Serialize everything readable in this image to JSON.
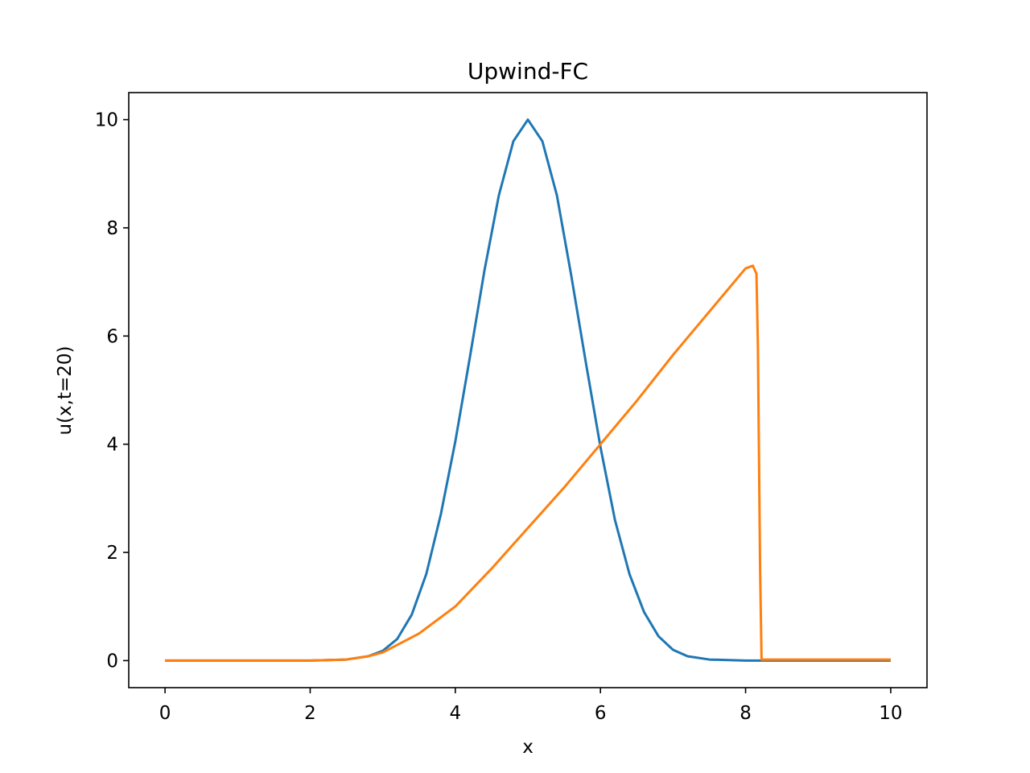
{
  "chart_data": {
    "type": "line",
    "title": "Upwind-FC",
    "xlabel": "x",
    "ylabel": "u(x,t=20)",
    "xlim": [
      -0.5,
      10.5
    ],
    "ylim": [
      -0.5,
      10.5
    ],
    "xticks": [
      0,
      2,
      4,
      6,
      8,
      10
    ],
    "yticks": [
      0,
      2,
      4,
      6,
      8,
      10
    ],
    "xtick_labels": [
      "0",
      "2",
      "4",
      "6",
      "8",
      "10"
    ],
    "ytick_labels": [
      "0",
      "2",
      "4",
      "6",
      "8",
      "10"
    ],
    "grid": false,
    "legend": "none",
    "series": [
      {
        "color": "#1f77b4",
        "x": [
          0,
          1,
          2,
          2.5,
          2.8,
          3.0,
          3.2,
          3.4,
          3.6,
          3.8,
          4.0,
          4.2,
          4.4,
          4.6,
          4.8,
          5.0,
          5.2,
          5.4,
          5.6,
          5.8,
          6.0,
          6.2,
          6.4,
          6.6,
          6.8,
          7.0,
          7.2,
          7.5,
          8.0,
          9.0,
          10.0
        ],
        "y": [
          0,
          0,
          0,
          0.02,
          0.08,
          0.18,
          0.4,
          0.85,
          1.6,
          2.7,
          4.05,
          5.6,
          7.2,
          8.6,
          9.6,
          10.0,
          9.6,
          8.6,
          7.1,
          5.5,
          3.95,
          2.6,
          1.6,
          0.9,
          0.45,
          0.2,
          0.08,
          0.02,
          0,
          0,
          0
        ]
      },
      {
        "color": "#ff7f0e",
        "x": [
          0,
          1,
          2,
          2.5,
          2.8,
          3.0,
          3.5,
          4.0,
          4.5,
          5.0,
          5.5,
          6.0,
          6.5,
          7.0,
          7.5,
          8.0,
          8.1,
          8.15,
          8.17,
          8.2,
          8.22,
          9.0,
          10.0
        ],
        "y": [
          0,
          0,
          0,
          0.02,
          0.08,
          0.15,
          0.5,
          1.0,
          1.7,
          2.45,
          3.2,
          4.0,
          4.8,
          5.65,
          6.45,
          7.25,
          7.3,
          7.15,
          5.8,
          1.7,
          0.02,
          0.02,
          0.02
        ]
      }
    ]
  }
}
